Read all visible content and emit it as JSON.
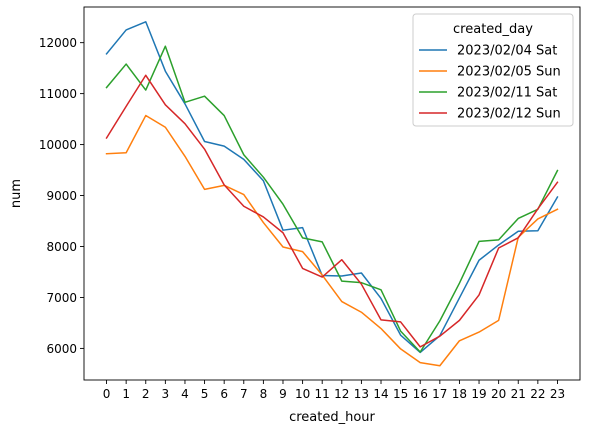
{
  "chart_data": {
    "type": "line",
    "title": "",
    "xlabel": "created_hour",
    "ylabel": "num",
    "x": [
      0,
      1,
      2,
      3,
      4,
      5,
      6,
      7,
      8,
      9,
      10,
      11,
      12,
      13,
      14,
      15,
      16,
      17,
      18,
      19,
      20,
      21,
      22,
      23
    ],
    "xlim": [
      -1.15,
      24.15
    ],
    "ylim": [
      5380,
      12700
    ],
    "yticks": [
      6000,
      7000,
      8000,
      9000,
      10000,
      11000,
      12000
    ],
    "grid": false,
    "legend": {
      "title": "created_day",
      "placement": "top-right"
    },
    "series": [
      {
        "name": "2023/02/04 Sat",
        "color": "#1f77b4",
        "values": [
          11780,
          12250,
          12410,
          11440,
          10800,
          10060,
          9970,
          9710,
          9290,
          8320,
          8370,
          7430,
          7420,
          7480,
          6980,
          6260,
          5920,
          6250,
          6990,
          7730,
          8030,
          8300,
          8310,
          8970
        ]
      },
      {
        "name": "2023/02/05 Sun",
        "color": "#ff7f0e",
        "values": [
          9820,
          9840,
          10570,
          10340,
          9770,
          9120,
          9200,
          9020,
          8470,
          7990,
          7900,
          7440,
          6920,
          6710,
          6390,
          5990,
          5720,
          5660,
          6150,
          6320,
          6550,
          8180,
          8540,
          8730
        ]
      },
      {
        "name": "2023/02/11 Sat",
        "color": "#2ca02c",
        "values": [
          11120,
          11580,
          11070,
          11930,
          10830,
          10950,
          10570,
          9800,
          9360,
          8830,
          8170,
          8090,
          7320,
          7290,
          7150,
          6340,
          5930,
          6540,
          7280,
          8100,
          8130,
          8550,
          8730,
          9490
        ]
      },
      {
        "name": "2023/02/12 Sun",
        "color": "#d62728",
        "values": [
          10130,
          10750,
          11360,
          10780,
          10410,
          9910,
          9210,
          8790,
          8580,
          8270,
          7570,
          7400,
          7740,
          7260,
          6560,
          6520,
          6030,
          6240,
          6550,
          7050,
          7970,
          8170,
          8740,
          9260
        ]
      }
    ]
  }
}
